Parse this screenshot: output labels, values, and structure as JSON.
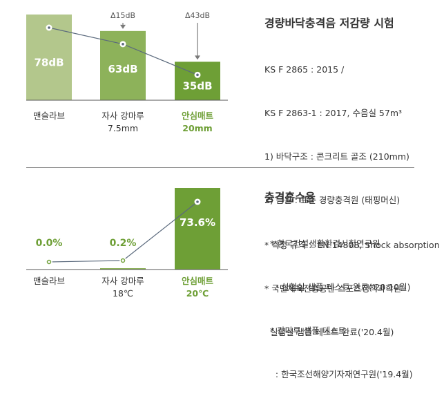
{
  "colors": {
    "bar_mansulrab": "#b3c78c",
    "bar_competitor": "#8db25a",
    "bar_ansim": "#6e9f36",
    "line": "#5b6a7d",
    "highlight_text": "#6e9f36",
    "arrow": "#7a7a7a"
  },
  "top": {
    "title": "경량바닥충격음 저감량 시험",
    "lines": [
      "KS F 2865 : 2015 /",
      "KS F 2863-1 : 2017, 수음실 57m³",
      "1) 바닥구조 : 콘크리트 골조 (210mm)",
      "2) 음원 : 표준 경량충격원 (태핑머신)",
      "  * 한국건설생활환경시험연구원",
      "    : 실험실 샘플 테스트 완료('20.10월)",
      "  * 강마루 샘플 테스트",
      "    : 한국조선해양기자재연구원('19.4월)"
    ]
  },
  "bottom": {
    "title": "충격흡수율",
    "lines": [
      "* 측정 규격 :  EN 14808, Shock absorption",
      "* 국민체육진흥공단 스포츠정책과학원",
      "  실험실 샘플 테스트 완료('20.4월)"
    ]
  },
  "chart_data": [
    {
      "type": "bar",
      "title": "",
      "categories": [
        "맨슬라브",
        "자사 강마루\n7.5mm",
        "안심매트\n20mm"
      ],
      "series": [
        {
          "values": [
            78,
            63,
            35
          ]
        }
      ],
      "data_labels": [
        "78dB",
        "63dB",
        "35dB"
      ],
      "annotations": [
        "",
        "Δ15dB",
        "Δ43dB"
      ],
      "ylim": [
        0,
        78
      ]
    },
    {
      "type": "bar",
      "title": "",
      "categories": [
        "맨슬라브",
        "자사 강마루\n18℃",
        "안심매트\n20℃"
      ],
      "series": [
        {
          "values": [
            0.0,
            0.2,
            73.6
          ]
        }
      ],
      "data_labels": [
        "0.0%",
        "0.2%",
        "73.6%"
      ],
      "ylim": [
        0,
        73.6
      ]
    }
  ]
}
